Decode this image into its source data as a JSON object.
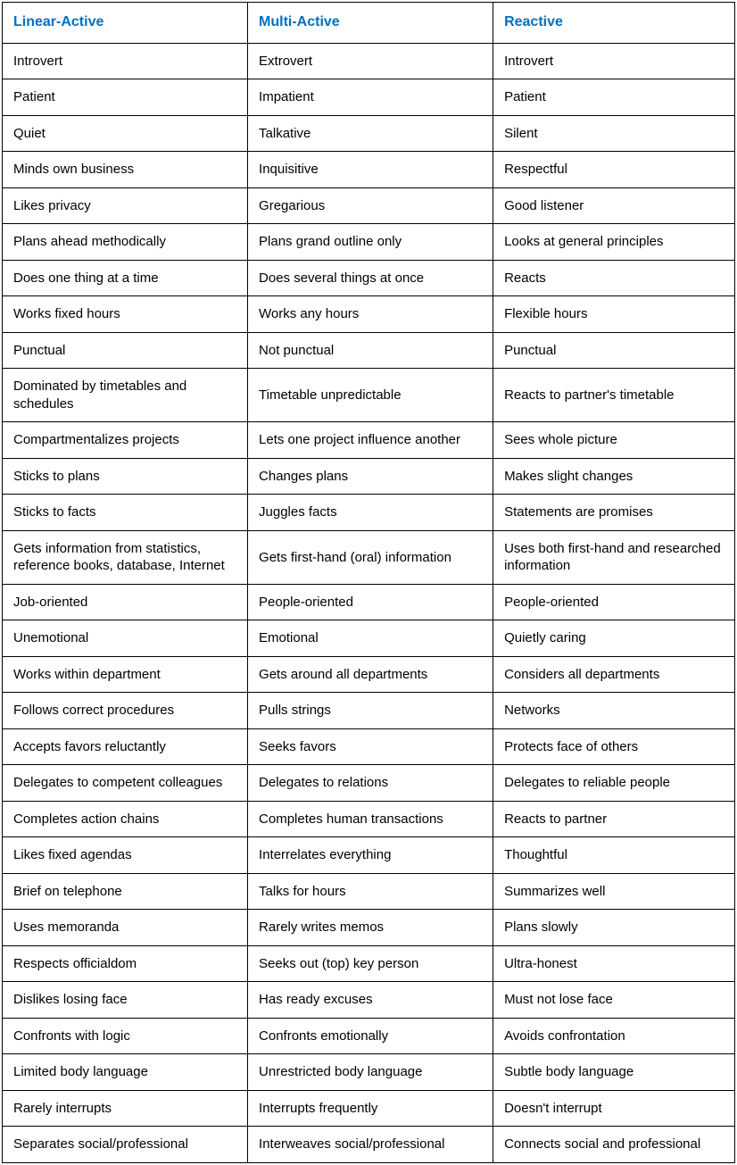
{
  "table": {
    "header_color": "#0070c0",
    "border_color": "#000000",
    "background_color": "#ffffff",
    "font_family": "Arial",
    "header_fontsize": 16,
    "cell_fontsize": 15,
    "columns": [
      "Linear-Active",
      "Multi-Active",
      "Reactive"
    ],
    "rows": [
      [
        "Introvert",
        "Extrovert",
        "Introvert"
      ],
      [
        "Patient",
        "Impatient",
        "Patient"
      ],
      [
        "Quiet",
        "Talkative",
        "Silent"
      ],
      [
        "Minds own business",
        "Inquisitive",
        "Respectful"
      ],
      [
        "Likes privacy",
        "Gregarious",
        "Good listener"
      ],
      [
        "Plans ahead methodically",
        "Plans grand outline only",
        "Looks at general principles"
      ],
      [
        "Does one thing at a time",
        "Does several things at once",
        "Reacts"
      ],
      [
        "Works fixed hours",
        "Works any hours",
        "Flexible hours"
      ],
      [
        "Punctual",
        "Not punctual",
        "Punctual"
      ],
      [
        "Dominated by timetables and schedules",
        "Timetable unpredictable",
        "Reacts to partner's timetable"
      ],
      [
        "Compartmentalizes projects",
        "Lets one project influence another",
        "Sees whole picture"
      ],
      [
        "Sticks to plans",
        "Changes plans",
        "Makes slight changes"
      ],
      [
        "Sticks to facts",
        "Juggles facts",
        "Statements are promises"
      ],
      [
        "Gets information from statistics, reference books, database, Internet",
        "Gets first-hand (oral) information",
        "Uses both first-hand and researched information"
      ],
      [
        "Job-oriented",
        "People-oriented",
        "People-oriented"
      ],
      [
        "Unemotional",
        "Emotional",
        "Quietly caring"
      ],
      [
        "Works within department",
        "Gets around all departments",
        "Considers all departments"
      ],
      [
        "Follows correct procedures",
        "Pulls strings",
        "Networks"
      ],
      [
        "Accepts favors reluctantly",
        "Seeks favors",
        "Protects face of others"
      ],
      [
        "Delegates to competent colleagues",
        "Delegates to relations",
        "Delegates to reliable people"
      ],
      [
        "Completes action chains",
        "Completes human transactions",
        "Reacts to partner"
      ],
      [
        "Likes fixed agendas",
        "Interrelates everything",
        "Thoughtful"
      ],
      [
        "Brief on telephone",
        "Talks for hours",
        "Summarizes well"
      ],
      [
        "Uses memoranda",
        "Rarely writes memos",
        "Plans slowly"
      ],
      [
        "Respects officialdom",
        "Seeks out (top) key person",
        "Ultra-honest"
      ],
      [
        "Dislikes losing face",
        "Has ready excuses",
        "Must not lose face"
      ],
      [
        "Confronts with logic",
        "Confronts emotionally",
        "Avoids confrontation"
      ],
      [
        "Limited body language",
        "Unrestricted body language",
        "Subtle body language"
      ],
      [
        "Rarely interrupts",
        "Interrupts frequently",
        "Doesn't interrupt"
      ],
      [
        "Separates social/professional",
        "Interweaves social/professional",
        "Connects social and professional"
      ]
    ]
  }
}
